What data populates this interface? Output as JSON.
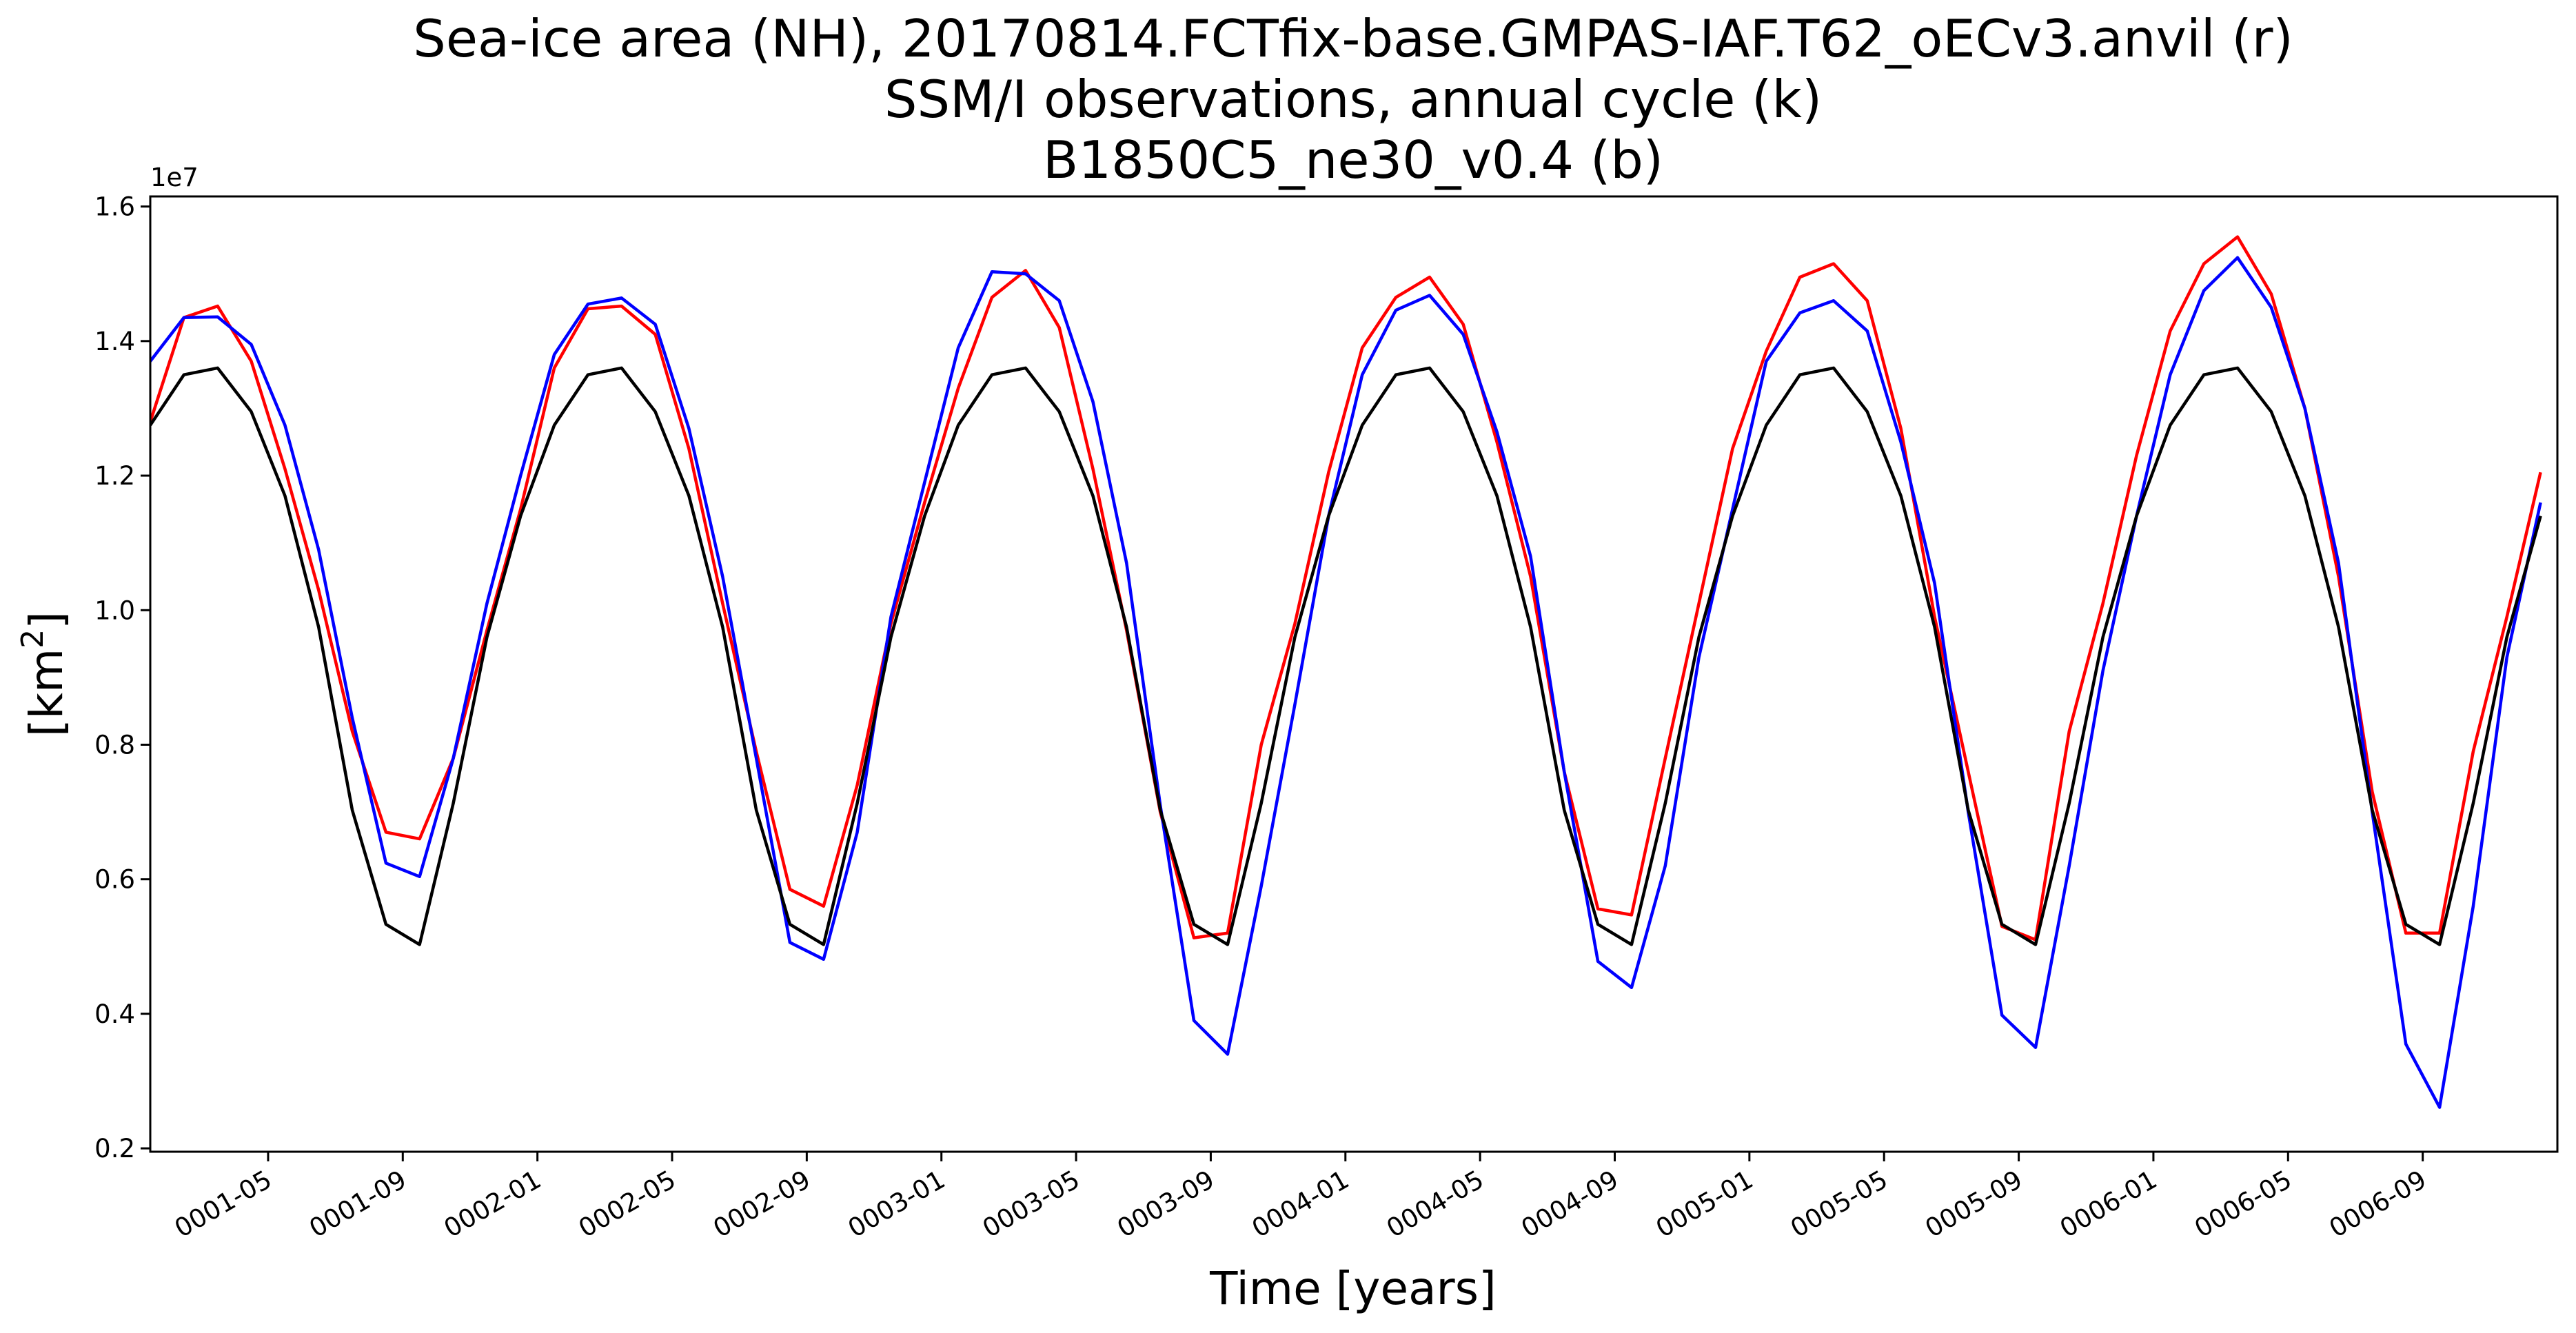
{
  "chart_data": {
    "type": "line",
    "title_lines": [
      "Sea-ice area (NH), 20170814.FCTfix-base.GMPAS-IAF.T62_oECv3.anvil (r)",
      "SSM/I observations, annual cycle (k)",
      "B1850C5_ne30_v0.4 (b)"
    ],
    "xlabel": "Time [years]",
    "ylabel_base": "[km",
    "ylabel_sup": "2",
    "ylabel_close": "]",
    "y_offset_label": "1e7",
    "ylim": [
      0.195,
      1.615
    ],
    "yticks": [
      0.2,
      0.4,
      0.6,
      0.8,
      1.0,
      1.2,
      1.4,
      1.6
    ],
    "ytick_labels": [
      "0.2",
      "0.4",
      "0.6",
      "0.8",
      "1.0",
      "1.2",
      "1.4",
      "1.6"
    ],
    "xlim": [
      0.5,
      72.0
    ],
    "xticks": [
      4,
      8,
      12,
      16,
      20,
      24,
      28,
      32,
      36,
      40,
      44,
      48,
      52,
      56,
      60,
      64,
      68
    ],
    "xtick_labels": [
      "0001-05",
      "0001-09",
      "0002-01",
      "0002-05",
      "0002-09",
      "0003-01",
      "0003-05",
      "0003-09",
      "0004-01",
      "0004-05",
      "0004-09",
      "0005-01",
      "0005-05",
      "0005-09",
      "0006-01",
      "0006-05",
      "0006-09"
    ],
    "x_months": [
      0.5,
      1.5,
      2.5,
      3.5,
      4.5,
      5.5,
      6.5,
      7.5,
      8.5,
      9.5,
      10.5,
      11.5,
      12.5,
      13.5,
      14.5,
      15.5,
      16.5,
      17.5,
      18.5,
      19.5,
      20.5,
      21.5,
      22.5,
      23.5,
      24.5,
      25.5,
      26.5,
      27.5,
      28.5,
      29.5,
      30.5,
      31.5,
      32.5,
      33.5,
      34.5,
      35.5,
      36.5,
      37.5,
      38.5,
      39.5,
      40.5,
      41.5,
      42.5,
      43.5,
      44.5,
      45.5,
      46.5,
      47.5,
      48.5,
      49.5,
      50.5,
      51.5,
      52.5,
      53.5,
      54.5,
      55.5,
      56.5,
      57.5,
      58.5,
      59.5,
      60.5,
      61.5,
      62.5,
      63.5,
      64.5,
      65.5,
      66.5,
      67.5,
      68.5,
      69.5,
      70.5,
      71.5
    ],
    "grid": false,
    "legend": "none",
    "series": [
      {
        "color": "#ff0000",
        "values": [
          1.28,
          1.435,
          1.452,
          1.37,
          1.21,
          1.03,
          0.82,
          0.67,
          0.66,
          0.78,
          0.97,
          1.15,
          1.36,
          1.448,
          1.452,
          1.41,
          1.24,
          1.01,
          0.79,
          0.585,
          0.56,
          0.74,
          0.98,
          1.16,
          1.33,
          1.465,
          1.505,
          1.42,
          1.21,
          0.97,
          0.7,
          0.513,
          0.52,
          0.8,
          0.98,
          1.205,
          1.39,
          1.465,
          1.495,
          1.425,
          1.25,
          1.05,
          0.76,
          0.556,
          0.547,
          0.78,
          1.01,
          1.24,
          1.385,
          1.495,
          1.515,
          1.46,
          1.27,
          0.99,
          0.76,
          0.53,
          0.51,
          0.82,
          1.01,
          1.23,
          1.415,
          1.515,
          1.555,
          1.47,
          1.3,
          1.05,
          0.73,
          0.52,
          0.52,
          0.79,
          0.99,
          1.205
        ]
      },
      {
        "color": "#0000ff",
        "values": [
          1.37,
          1.435,
          1.436,
          1.395,
          1.275,
          1.09,
          0.84,
          0.624,
          0.604,
          0.78,
          1.01,
          1.2,
          1.38,
          1.455,
          1.464,
          1.425,
          1.27,
          1.05,
          0.78,
          0.506,
          0.481,
          0.67,
          0.99,
          1.19,
          1.39,
          1.503,
          1.5,
          1.46,
          1.31,
          1.07,
          0.71,
          0.39,
          0.34,
          0.59,
          0.86,
          1.14,
          1.35,
          1.446,
          1.468,
          1.41,
          1.265,
          1.08,
          0.76,
          0.478,
          0.439,
          0.62,
          0.93,
          1.15,
          1.37,
          1.442,
          1.46,
          1.415,
          1.25,
          1.04,
          0.7,
          0.398,
          0.35,
          0.62,
          0.91,
          1.14,
          1.35,
          1.475,
          1.524,
          1.45,
          1.3,
          1.07,
          0.7,
          0.355,
          0.261,
          0.56,
          0.93,
          1.16
        ]
      },
      {
        "color": "#000000",
        "values": [
          1.275,
          1.35,
          1.36,
          1.295,
          1.17,
          0.975,
          0.703,
          0.533,
          0.503,
          0.713,
          0.96,
          1.14,
          1.275,
          1.35,
          1.36,
          1.295,
          1.17,
          0.975,
          0.703,
          0.533,
          0.503,
          0.713,
          0.96,
          1.14,
          1.275,
          1.35,
          1.36,
          1.295,
          1.17,
          0.975,
          0.703,
          0.533,
          0.503,
          0.713,
          0.96,
          1.14,
          1.275,
          1.35,
          1.36,
          1.295,
          1.17,
          0.975,
          0.703,
          0.533,
          0.503,
          0.713,
          0.96,
          1.14,
          1.275,
          1.35,
          1.36,
          1.295,
          1.17,
          0.975,
          0.703,
          0.533,
          0.503,
          0.713,
          0.96,
          1.14,
          1.275,
          1.35,
          1.36,
          1.295,
          1.17,
          0.975,
          0.703,
          0.533,
          0.503,
          0.713,
          0.96,
          1.14
        ]
      }
    ]
  }
}
